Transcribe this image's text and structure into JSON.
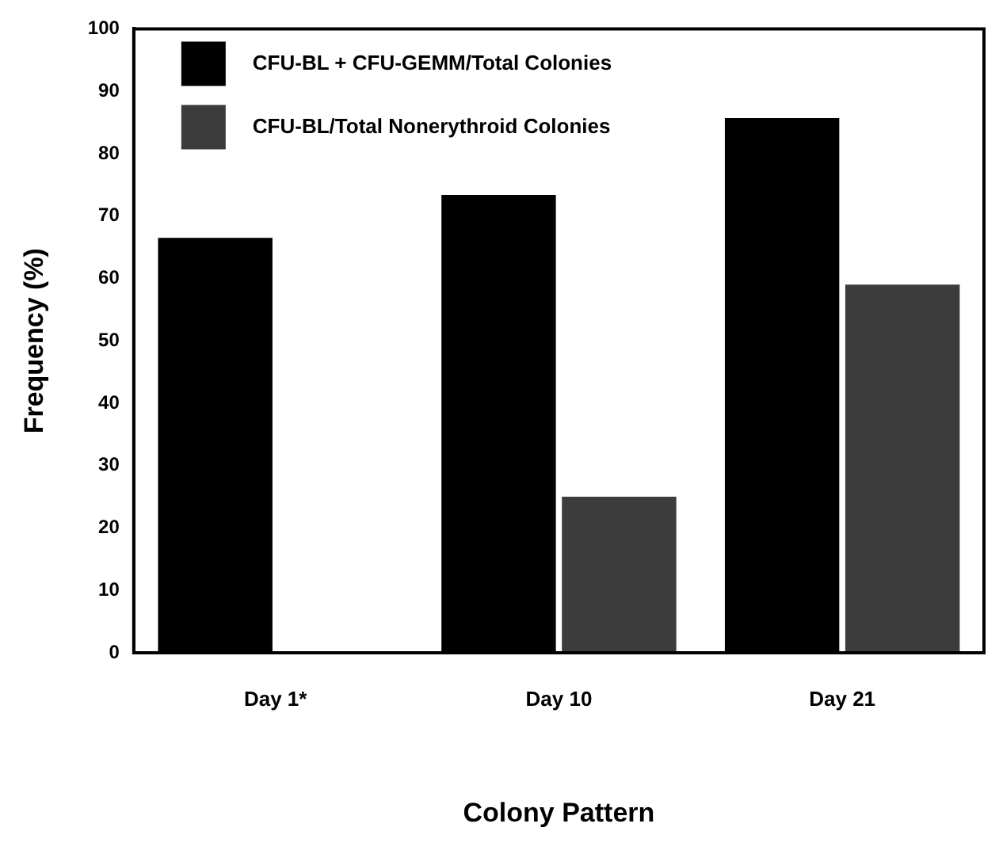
{
  "chart_data": {
    "type": "bar",
    "xlabel": "Colony Pattern",
    "ylabel": "Frequency (%)",
    "categories": [
      "Day 1*",
      "Day 10",
      "Day 21"
    ],
    "series": [
      {
        "name": "CFU-BL + CFU-GEMM/Total Colonies",
        "color": "#000000",
        "values": [
          66.5,
          73.4,
          85.7
        ]
      },
      {
        "name": "CFU-BL/Total Nonerythroid Colonies",
        "color": "#3c3c3c",
        "values": [
          0,
          25,
          59
        ]
      }
    ],
    "ylim": [
      0,
      100
    ],
    "yticks": [
      0,
      10,
      20,
      30,
      40,
      50,
      60,
      70,
      80,
      90,
      100
    ],
    "grid": false,
    "legend": "top left"
  }
}
